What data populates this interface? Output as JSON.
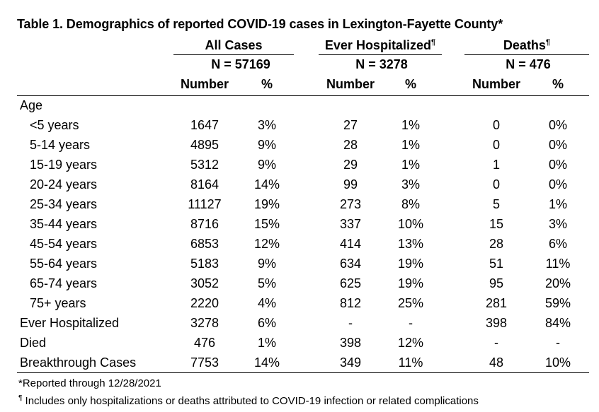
{
  "title": "Table 1. Demographics of reported COVID-19 cases in Lexington-Fayette County*",
  "groups": [
    {
      "label": "All Cases",
      "mark": "",
      "n": "N = 57169"
    },
    {
      "label": "Ever Hospitalized",
      "mark": "¶",
      "n": "N = 3278"
    },
    {
      "label": "Deaths",
      "mark": "¶",
      "n": "N = 476"
    }
  ],
  "subheaders": [
    "Number",
    "%",
    "Number",
    "%",
    "Number",
    "%"
  ],
  "age_heading": "Age",
  "rows": [
    {
      "label": "<5 years",
      "cells": [
        "1647",
        "3%",
        "27",
        "1%",
        "0",
        "0%"
      ]
    },
    {
      "label": "5-14 years",
      "cells": [
        "4895",
        "9%",
        "28",
        "1%",
        "0",
        "0%"
      ]
    },
    {
      "label": "15-19 years",
      "cells": [
        "5312",
        "9%",
        "29",
        "1%",
        "1",
        "0%"
      ]
    },
    {
      "label": "20-24 years",
      "cells": [
        "8164",
        "14%",
        "99",
        "3%",
        "0",
        "0%"
      ]
    },
    {
      "label": "25-34 years",
      "cells": [
        "11127",
        "19%",
        "273",
        "8%",
        "5",
        "1%"
      ]
    },
    {
      "label": "35-44 years",
      "cells": [
        "8716",
        "15%",
        "337",
        "10%",
        "15",
        "3%"
      ]
    },
    {
      "label": "45-54 years",
      "cells": [
        "6853",
        "12%",
        "414",
        "13%",
        "28",
        "6%"
      ]
    },
    {
      "label": "55-64 years",
      "cells": [
        "5183",
        "9%",
        "634",
        "19%",
        "51",
        "11%"
      ]
    },
    {
      "label": "65-74 years",
      "cells": [
        "3052",
        "5%",
        "625",
        "19%",
        "95",
        "20%"
      ]
    },
    {
      "label": "75+ years",
      "cells": [
        "2220",
        "4%",
        "812",
        "25%",
        "281",
        "59%"
      ]
    },
    {
      "label": "Ever Hospitalized",
      "cells": [
        "3278",
        "6%",
        "-",
        "-",
        "398",
        "84%"
      ]
    },
    {
      "label": "Died",
      "cells": [
        "476",
        "1%",
        "398",
        "12%",
        "-",
        "-"
      ]
    },
    {
      "label": "Breakthrough Cases",
      "cells": [
        "7753",
        "14%",
        "349",
        "11%",
        "48",
        "10%"
      ]
    }
  ],
  "footnotes": {
    "star": "*Reported through 12/28/2021",
    "pilcrow_mark": "¶",
    "pilcrow": " Includes only hospitalizations or deaths attributed to COVID-19 infection or related complications"
  }
}
